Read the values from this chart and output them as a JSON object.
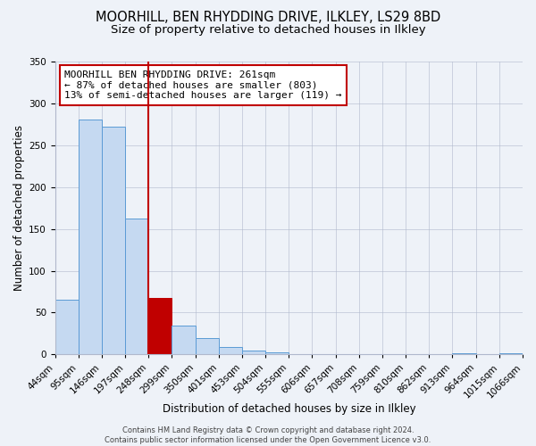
{
  "title": "MOORHILL, BEN RHYDDING DRIVE, ILKLEY, LS29 8BD",
  "subtitle": "Size of property relative to detached houses in Ilkley",
  "xlabel": "Distribution of detached houses by size in Ilkley",
  "ylabel": "Number of detached properties",
  "bin_labels": [
    "44sqm",
    "95sqm",
    "146sqm",
    "197sqm",
    "248sqm",
    "299sqm",
    "350sqm",
    "401sqm",
    "453sqm",
    "504sqm",
    "555sqm",
    "606sqm",
    "657sqm",
    "708sqm",
    "759sqm",
    "810sqm",
    "862sqm",
    "913sqm",
    "964sqm",
    "1015sqm",
    "1066sqm"
  ],
  "values": [
    65,
    281,
    272,
    162,
    67,
    34,
    20,
    9,
    5,
    2,
    0,
    0,
    0,
    0,
    0,
    0,
    0,
    1,
    0,
    1
  ],
  "bar_color": "#c5d9f1",
  "bar_edge_color": "#5b9bd5",
  "highlight_bar_index": 4,
  "highlight_bar_color": "#c00000",
  "highlight_bar_edge_color": "#c00000",
  "vline_color": "#c00000",
  "ylim": [
    0,
    350
  ],
  "yticks": [
    0,
    50,
    100,
    150,
    200,
    250,
    300,
    350
  ],
  "annotation_title": "MOORHILL BEN RHYDDING DRIVE: 261sqm",
  "annotation_line1": "← 87% of detached houses are smaller (803)",
  "annotation_line2": "13% of semi-detached houses are larger (119) →",
  "annotation_box_color": "#ffffff",
  "annotation_box_edge_color": "#c00000",
  "footer_line1": "Contains HM Land Registry data © Crown copyright and database right 2024.",
  "footer_line2": "Contains public sector information licensed under the Open Government Licence v3.0.",
  "background_color": "#eef2f8",
  "plot_background_color": "#eef2f8",
  "title_fontsize": 10.5,
  "subtitle_fontsize": 9.5,
  "axis_label_fontsize": 8.5,
  "tick_fontsize": 7.5,
  "annotation_fontsize": 8,
  "footer_fontsize": 6
}
